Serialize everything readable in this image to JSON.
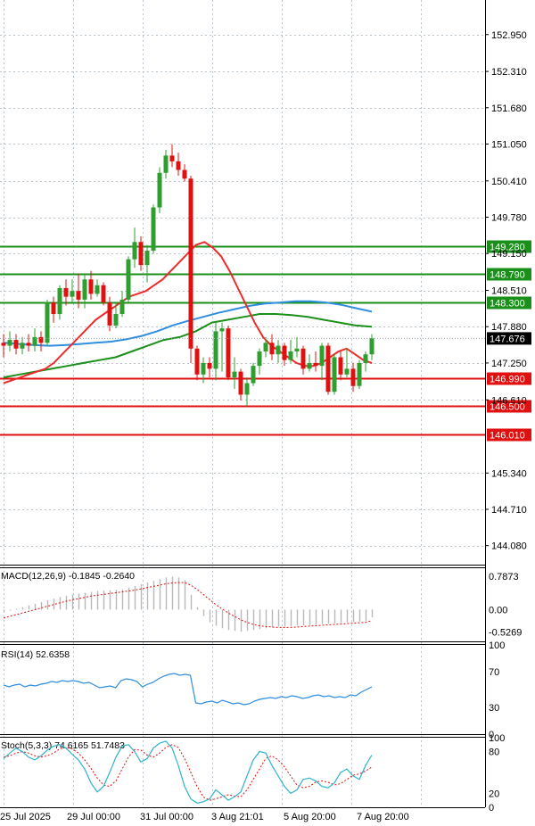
{
  "chart_data": {
    "type": "candlestick",
    "main": {
      "price_ticks": [
        "152.950",
        "152.310",
        "151.680",
        "151.050",
        "150.410",
        "149.780",
        "149.150",
        "148.510",
        "147.880",
        "147.250",
        "146.610",
        "145.340",
        "144.710",
        "144.080"
      ],
      "ylim": [
        143.75,
        153.55
      ],
      "current_price": "147.676",
      "levels": [
        {
          "label": "149.280",
          "value": 149.28,
          "kind": "resistance"
        },
        {
          "label": "148.790",
          "value": 148.79,
          "kind": "resistance"
        },
        {
          "label": "148.300",
          "value": 148.3,
          "kind": "resistance"
        },
        {
          "label": "146.990",
          "value": 146.99,
          "kind": "support"
        },
        {
          "label": "146.500",
          "value": 146.5,
          "kind": "support"
        },
        {
          "label": "146.010",
          "value": 146.01,
          "kind": "support"
        }
      ],
      "candles": [
        [
          147.6,
          147.55,
          147.75,
          147.35
        ],
        [
          147.55,
          147.65,
          147.8,
          147.45
        ],
        [
          147.65,
          147.5,
          147.75,
          147.4
        ],
        [
          147.5,
          147.6,
          147.7,
          147.4
        ],
        [
          147.6,
          147.55,
          147.75,
          147.45
        ],
        [
          147.55,
          147.7,
          147.85,
          147.45
        ],
        [
          147.7,
          147.6,
          147.8,
          147.45
        ],
        [
          147.6,
          148.3,
          148.35,
          147.55
        ],
        [
          148.3,
          148.1,
          148.4,
          147.95
        ],
        [
          148.1,
          148.55,
          148.6,
          148.0
        ],
        [
          148.55,
          148.4,
          148.7,
          148.25
        ],
        [
          148.4,
          148.5,
          148.7,
          148.3
        ],
        [
          148.5,
          148.35,
          148.8,
          148.2
        ],
        [
          148.35,
          148.7,
          148.8,
          148.2
        ],
        [
          148.7,
          148.45,
          148.85,
          148.35
        ],
        [
          148.45,
          148.6,
          148.7,
          148.4
        ],
        [
          148.6,
          148.3,
          148.65,
          148.25
        ],
        [
          148.3,
          147.9,
          148.4,
          147.8
        ],
        [
          147.9,
          148.1,
          148.3,
          147.85
        ],
        [
          148.1,
          148.35,
          148.5,
          148.05
        ],
        [
          148.35,
          149.05,
          149.1,
          148.3
        ],
        [
          149.05,
          149.35,
          149.6,
          148.9
        ],
        [
          149.35,
          148.95,
          149.45,
          148.85
        ],
        [
          148.95,
          149.2,
          149.3,
          148.65
        ],
        [
          149.2,
          149.95,
          150.0,
          149.15
        ],
        [
          149.95,
          150.55,
          150.65,
          149.85
        ],
        [
          150.55,
          150.85,
          150.95,
          150.45
        ],
        [
          150.85,
          150.75,
          151.05,
          150.65
        ],
        [
          150.75,
          150.6,
          150.9,
          150.5
        ],
        [
          150.6,
          150.45,
          150.7,
          150.4
        ],
        [
          150.45,
          147.5,
          150.5,
          147.25
        ],
        [
          147.5,
          147.05,
          147.55,
          146.95
        ],
        [
          147.05,
          147.25,
          147.35,
          146.9
        ],
        [
          147.25,
          147.15,
          147.35,
          147.0
        ],
        [
          147.15,
          147.8,
          147.95,
          146.95
        ],
        [
          147.8,
          147.85,
          147.95,
          147.1
        ],
        [
          147.85,
          147.0,
          147.9,
          146.95
        ],
        [
          147.0,
          147.1,
          147.35,
          146.8
        ],
        [
          147.1,
          146.7,
          147.15,
          146.6
        ],
        [
          146.7,
          146.9,
          147.0,
          146.5
        ],
        [
          146.9,
          147.2,
          147.25,
          146.85
        ],
        [
          147.2,
          147.45,
          147.5,
          147.05
        ],
        [
          147.45,
          147.6,
          147.7,
          147.35
        ],
        [
          147.6,
          147.4,
          147.75,
          147.3
        ],
        [
          147.4,
          147.55,
          147.65,
          147.25
        ],
        [
          147.55,
          147.3,
          147.6,
          147.2
        ],
        [
          147.3,
          147.45,
          147.65,
          147.25
        ],
        [
          147.45,
          147.5,
          147.7,
          147.35
        ],
        [
          147.5,
          147.15,
          147.55,
          147.05
        ],
        [
          147.15,
          147.25,
          147.4,
          147.1
        ],
        [
          147.25,
          147.2,
          147.45,
          147.1
        ],
        [
          147.2,
          147.55,
          147.6,
          146.95
        ],
        [
          147.55,
          146.75,
          147.6,
          146.7
        ],
        [
          146.75,
          147.35,
          147.4,
          146.7
        ],
        [
          147.35,
          147.05,
          147.45,
          146.95
        ],
        [
          147.05,
          147.15,
          147.5,
          147.0
        ],
        [
          147.15,
          146.85,
          147.25,
          146.75
        ],
        [
          146.85,
          147.25,
          147.3,
          146.8
        ],
        [
          147.25,
          147.4,
          147.45,
          147.1
        ],
        [
          147.4,
          147.68,
          147.75,
          147.3
        ]
      ],
      "ma_fast": [
        146.9,
        146.95,
        147.0,
        147.05,
        147.1,
        147.15,
        147.25,
        147.4,
        147.55,
        147.7,
        147.85,
        148.0,
        148.1,
        148.2,
        148.3,
        148.4,
        148.45,
        148.5,
        148.6,
        148.7,
        148.85,
        149.0,
        149.15,
        149.3,
        149.35,
        149.25,
        149.1,
        148.85,
        148.55,
        148.25,
        147.95,
        147.7,
        147.55,
        147.45,
        147.35,
        147.25,
        147.2,
        147.2,
        147.25,
        147.35,
        147.45,
        147.5,
        147.4,
        147.3,
        147.25
      ],
      "ma_mid": [
        147.0,
        147.05,
        147.1,
        147.15,
        147.2,
        147.25,
        147.3,
        147.35,
        147.45,
        147.55,
        147.65,
        147.7,
        147.8,
        147.95,
        148.0,
        148.05,
        148.1,
        148.1,
        148.08,
        148.05,
        148.0,
        147.95,
        147.9,
        147.88
      ],
      "ma_slow": [
        147.6,
        147.58,
        147.56,
        147.55,
        147.56,
        147.58,
        147.6,
        147.62,
        147.66,
        147.72,
        147.8,
        147.9,
        147.98,
        148.05,
        148.12,
        148.18,
        148.24,
        148.28,
        148.3,
        148.32,
        148.32,
        148.3,
        148.26,
        148.2,
        148.14
      ],
      "colors": {
        "bull": "#2e9e2e",
        "bear": "#e01010",
        "ma_fast": "#ee2a2a",
        "ma_mid": "#1a8f1a",
        "ma_slow": "#2f8ee0",
        "res": "#1a8f1a",
        "sup": "#e01010"
      }
    },
    "x_ticks": [
      "25 Jul 2025",
      "29 Jul 00:00",
      "31 Jul 00:00",
      "3 Aug 21:01",
      "5 Aug 20:00",
      "7 Aug 20:00"
    ],
    "macd": {
      "label": "MACD(12,26,9) -0.1845 -0.2640",
      "ticks": [
        "0.7873",
        "0.00",
        "-0.5269"
      ],
      "hist": [
        -0.05,
        -0.02,
        0.02,
        0.06,
        0.1,
        0.14,
        0.18,
        0.22,
        0.26,
        0.3,
        0.33,
        0.36,
        0.38,
        0.4,
        0.42,
        0.44,
        0.45,
        0.46,
        0.47,
        0.48,
        0.52,
        0.56,
        0.6,
        0.64,
        0.68,
        0.72,
        0.76,
        0.78,
        0.76,
        0.7,
        0.35,
        0.05,
        -0.15,
        -0.3,
        -0.38,
        -0.44,
        -0.48,
        -0.5,
        -0.52,
        -0.5,
        -0.48,
        -0.46,
        -0.44,
        -0.42,
        -0.4,
        -0.4,
        -0.39,
        -0.38,
        -0.37,
        -0.36,
        -0.35,
        -0.34,
        -0.33,
        -0.32,
        -0.31,
        -0.3,
        -0.29,
        -0.28,
        -0.27,
        -0.18
      ],
      "signal": [
        -0.2,
        -0.16,
        -0.12,
        -0.08,
        -0.04,
        0.0,
        0.04,
        0.08,
        0.12,
        0.16,
        0.2,
        0.23,
        0.26,
        0.29,
        0.32,
        0.34,
        0.36,
        0.38,
        0.4,
        0.42,
        0.44,
        0.46,
        0.49,
        0.52,
        0.55,
        0.58,
        0.61,
        0.63,
        0.64,
        0.64,
        0.58,
        0.48,
        0.36,
        0.24,
        0.12,
        0.02,
        -0.08,
        -0.16,
        -0.24,
        -0.3,
        -0.35,
        -0.38,
        -0.4,
        -0.41,
        -0.42,
        -0.42,
        -0.42,
        -0.41,
        -0.4,
        -0.39,
        -0.38,
        -0.37,
        -0.36,
        -0.35,
        -0.34,
        -0.33,
        -0.32,
        -0.31,
        -0.3,
        -0.26
      ],
      "ylim": [
        -0.75,
        0.98
      ]
    },
    "rsi": {
      "label": "RSI(14) 52.6358",
      "ticks": [
        "100",
        "70",
        "30",
        "0"
      ],
      "values": [
        55,
        53,
        55,
        56,
        53,
        55,
        54,
        56,
        57,
        59,
        58,
        60,
        59,
        60,
        59,
        57,
        58,
        55,
        52,
        53,
        54,
        52,
        60,
        62,
        61,
        59,
        53,
        56,
        58,
        62,
        65,
        67,
        68,
        66,
        67,
        66,
        35,
        34,
        36,
        37,
        35,
        38,
        36,
        34,
        35,
        33,
        34,
        37,
        39,
        40,
        41,
        40,
        42,
        41,
        43,
        42,
        40,
        41,
        43,
        44,
        42,
        43,
        41,
        42,
        41,
        44,
        43,
        47,
        50,
        53
      ],
      "ylim": [
        0,
        100
      ]
    },
    "stoch": {
      "label": "Stoch(5,3,3) 74.6165 51.7483",
      "ticks": [
        "100",
        "80",
        "20",
        "0"
      ],
      "k": [
        70,
        78,
        85,
        80,
        72,
        68,
        74,
        82,
        88,
        90,
        85,
        76,
        68,
        55,
        35,
        22,
        30,
        50,
        72,
        88,
        90,
        80,
        65,
        70,
        85,
        92,
        95,
        85,
        60,
        30,
        12,
        6,
        8,
        12,
        25,
        18,
        10,
        15,
        22,
        45,
        68,
        80,
        78,
        60,
        45,
        30,
        20,
        25,
        40,
        42,
        38,
        30,
        28,
        35,
        50,
        55,
        45,
        40,
        60,
        75
      ],
      "d": [
        72,
        74,
        78,
        80,
        78,
        74,
        72,
        74,
        78,
        84,
        86,
        84,
        78,
        68,
        56,
        42,
        32,
        30,
        38,
        55,
        72,
        83,
        82,
        75,
        72,
        78,
        86,
        90,
        86,
        70,
        50,
        30,
        15,
        10,
        12,
        15,
        18,
        16,
        15,
        25,
        40,
        55,
        70,
        74,
        68,
        58,
        45,
        32,
        28,
        30,
        36,
        38,
        36,
        32,
        34,
        40,
        46,
        48,
        52,
        58
      ],
      "ylim": [
        0,
        100
      ]
    }
  }
}
